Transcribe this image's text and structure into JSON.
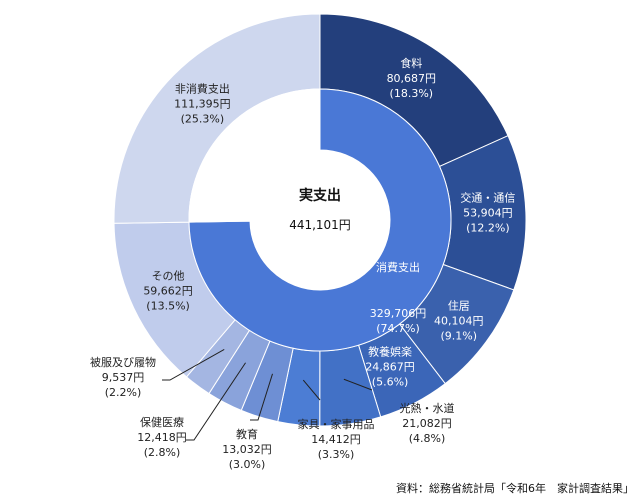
{
  "chart_data": {
    "type": "pie",
    "subtype": "nested-donut",
    "title": "",
    "center": {
      "title": "実支出",
      "value": "441,101円"
    },
    "outer_ring": [
      {
        "name": "食料",
        "amount": "80,687円",
        "pct": "(18.3%)",
        "value": 80687,
        "color": "#233f7c"
      },
      {
        "name": "交通・通信",
        "amount": "53,904円",
        "pct": "(12.2%)",
        "value": 53904,
        "color": "#2c4f96"
      },
      {
        "name": "住居",
        "amount": "40,104円",
        "pct": "(9.1%)",
        "value": 40104,
        "color": "#3a61ad"
      },
      {
        "name": "教養娯楽",
        "amount": "24,867円",
        "pct": "(5.6%)",
        "value": 24867,
        "color": "#3b66b8"
      },
      {
        "name": "光熱・水道",
        "amount": "21,082円",
        "pct": "(4.8%)",
        "value": 21082,
        "color": "#4271c6"
      },
      {
        "name": "家具・家事用品",
        "amount": "14,412円",
        "pct": "(3.3%)",
        "value": 14412,
        "color": "#4c7dd4"
      },
      {
        "name": "教育",
        "amount": "13,032円",
        "pct": "(3.0%)",
        "value": 13032,
        "color": "#6e8fd4"
      },
      {
        "name": "保健医療",
        "amount": "12,418円",
        "pct": "(2.8%)",
        "value": 12418,
        "color": "#8aa3db"
      },
      {
        "name": "被服及び履物",
        "amount": "9,537円",
        "pct": "(2.2%)",
        "value": 9537,
        "color": "#a4b6e2"
      },
      {
        "name": "その他",
        "amount": "59,662円",
        "pct": "(13.5%)",
        "value": 59662,
        "color": "#c0ccec"
      },
      {
        "name": "非消費支出",
        "amount": "111,395円",
        "pct": "(25.3%)",
        "value": 111395,
        "color": "#ced7ee"
      }
    ],
    "inner_ring": [
      {
        "name": "消費支出",
        "amount": "329,706円",
        "pct": "(74.7%)",
        "value": 329706,
        "color": "#4a78d6"
      },
      {
        "name": "",
        "amount": "",
        "pct": "",
        "value": 111395,
        "color": "#ffffff"
      }
    ]
  },
  "source_note": "資料：総務省統計局「令和6年　家計調査結果」"
}
